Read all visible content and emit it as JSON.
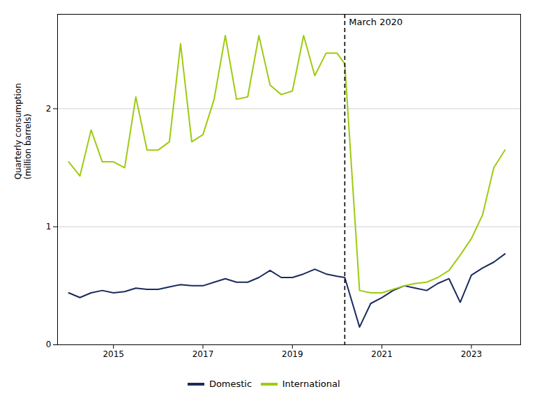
{
  "chart_data": {
    "type": "line",
    "ylabel": "Quarterly consumption\n(million barrels)",
    "x": [
      2014.0,
      2014.25,
      2014.5,
      2014.75,
      2015.0,
      2015.25,
      2015.5,
      2015.75,
      2016.0,
      2016.25,
      2016.5,
      2016.75,
      2017.0,
      2017.25,
      2017.5,
      2017.75,
      2018.0,
      2018.25,
      2018.5,
      2018.75,
      2019.0,
      2019.25,
      2019.5,
      2019.75,
      2020.0,
      2020.17,
      2020.5,
      2020.75,
      2021.0,
      2021.25,
      2021.5,
      2021.75,
      2022.0,
      2022.25,
      2022.5,
      2022.75,
      2023.0,
      2023.25,
      2023.5,
      2023.75
    ],
    "series": [
      {
        "name": "Domestic",
        "color": "#1b2a5e",
        "values": [
          0.44,
          0.4,
          0.44,
          0.46,
          0.44,
          0.45,
          0.48,
          0.47,
          0.47,
          0.49,
          0.51,
          0.5,
          0.5,
          0.53,
          0.56,
          0.53,
          0.53,
          0.57,
          0.63,
          0.57,
          0.57,
          0.6,
          0.64,
          0.6,
          0.58,
          0.57,
          0.15,
          0.35,
          0.4,
          0.46,
          0.5,
          0.48,
          0.46,
          0.52,
          0.56,
          0.36,
          0.59,
          0.65,
          0.7,
          0.77
        ]
      },
      {
        "name": "International",
        "color": "#9ecb10",
        "values": [
          1.55,
          1.43,
          1.82,
          1.55,
          1.55,
          1.5,
          2.1,
          1.65,
          1.65,
          1.72,
          2.55,
          1.72,
          1.78,
          2.08,
          2.62,
          2.08,
          2.1,
          2.62,
          2.2,
          2.12,
          2.15,
          2.62,
          2.28,
          2.47,
          2.47,
          2.38,
          0.46,
          0.44,
          0.44,
          0.47,
          0.5,
          0.52,
          0.53,
          0.57,
          0.63,
          0.76,
          0.9,
          1.1,
          1.5,
          1.65
        ]
      }
    ],
    "annotations": [
      {
        "x": 2020.17,
        "text": "March 2020",
        "line_style": "dashed",
        "color": "black"
      }
    ],
    "xlim": [
      2013.75,
      2024.1
    ],
    "xticks": [
      2015,
      2017,
      2019,
      2021,
      2023
    ],
    "ylim": [
      0,
      2.8
    ],
    "yticks": [
      0,
      1,
      2
    ],
    "grid": "y",
    "legend": "bottom"
  }
}
